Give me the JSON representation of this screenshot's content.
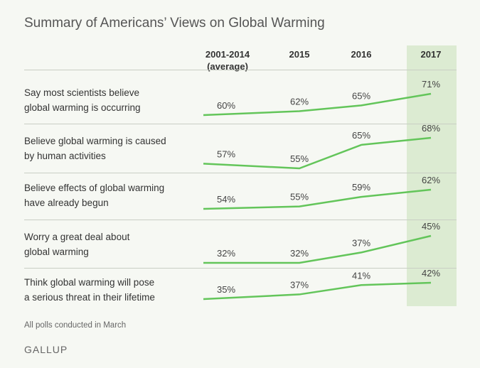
{
  "title": "Summary of Americans’ Views on Global Warming",
  "note": "All polls conducted in March",
  "brand": "GALLUP",
  "colors": {
    "line": "#63c55a",
    "highlight": "#dcebd2"
  },
  "chart_data": {
    "type": "line",
    "title": "Summary of Americans’ Views on Global Warming",
    "categories": [
      "2001-2014 (average)",
      "2015",
      "2016",
      "2017"
    ],
    "category_lines": [
      [
        "2001-2014",
        "(average)"
      ],
      [
        "2015"
      ],
      [
        "2016"
      ],
      [
        "2017"
      ]
    ],
    "highlight_category": "2017",
    "series": [
      {
        "name": "Say most scientists believe global warming is occurring",
        "label_lines": [
          "Say most scientists believe",
          "global warming is occurring"
        ],
        "values": [
          60,
          62,
          65,
          71
        ]
      },
      {
        "name": "Believe global warming is caused by human activities",
        "label_lines": [
          "Believe global warming is caused",
          "by human activities"
        ],
        "values": [
          57,
          55,
          65,
          68
        ]
      },
      {
        "name": "Believe effects of global warming have already begun",
        "label_lines": [
          "Believe effects of global warming",
          "have already begun"
        ],
        "values": [
          54,
          55,
          59,
          62
        ]
      },
      {
        "name": "Worry a great deal about global warming",
        "label_lines": [
          "Worry a great deal about",
          "global warming"
        ],
        "values": [
          32,
          32,
          37,
          45
        ]
      },
      {
        "name": "Think global warming will pose a serious threat in their lifetime",
        "label_lines": [
          "Think global warming will pose",
          "a serious threat in their lifetime"
        ],
        "values": [
          35,
          37,
          41,
          42
        ]
      }
    ],
    "value_suffix": "%",
    "grid": false
  }
}
